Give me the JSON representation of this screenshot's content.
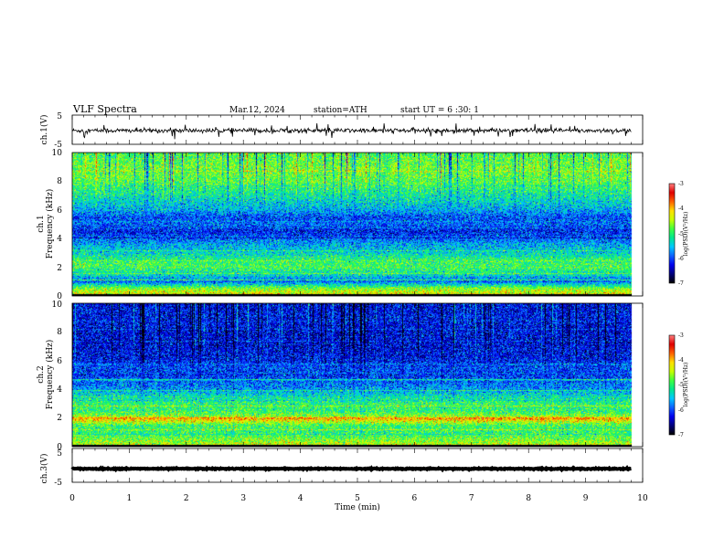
{
  "header": {
    "title": "VLF  Spectra",
    "date": "Mar.12, 2024",
    "station": "station=ATH",
    "start": "start  UT  =   6  :30: 1"
  },
  "colors": {
    "colormap": [
      "#000000",
      "#00007a",
      "#0000ee",
      "#1060ff",
      "#00c8ff",
      "#00e890",
      "#40ff40",
      "#c8ff00",
      "#ffe000",
      "#ff6000",
      "#e00000",
      "#ff8080",
      "#ffffff"
    ],
    "trace": "#000000",
    "frame": "#000000"
  },
  "chart_data": [
    {
      "id": "ch1-trace",
      "type": "line",
      "ylabel": "ch.1(V)",
      "ylim": [
        -5,
        5
      ],
      "yticks": [
        "5",
        "-5"
      ],
      "x_range": [
        0,
        10
      ],
      "trace_mean": -0.3,
      "trace_amplitude": 0.8,
      "data_end_min": 9.8
    },
    {
      "id": "ch1-spectrogram",
      "type": "heatmap",
      "ylabel_line1": "ch.1",
      "ylabel_line2": "Frequency (kHz)",
      "ylim": [
        0,
        10
      ],
      "yticks": [
        "0",
        "2",
        "4",
        "6",
        "8",
        "10"
      ],
      "x_range": [
        0,
        10
      ],
      "data_end_min": 9.8,
      "colorbar": {
        "label": "log(PSD)(V²/Hz)",
        "range": [
          -7,
          -3
        ],
        "ticks": [
          "-3",
          "-4",
          "-5",
          "-6",
          "-7"
        ]
      },
      "band_profile_khz": [
        0,
        0.5,
        1,
        1.5,
        2,
        2.5,
        3,
        3.5,
        4,
        4.5,
        5,
        5.5,
        6,
        7,
        8,
        9,
        10
      ],
      "band_profile_logpsd": [
        -4.2,
        -4.6,
        -5.9,
        -5.3,
        -4.9,
        -5.0,
        -5.4,
        -5.6,
        -5.9,
        -6.2,
        -5.9,
        -6.0,
        -5.6,
        -5.2,
        -4.8,
        -4.7,
        -4.9
      ]
    },
    {
      "id": "ch2-spectrogram",
      "type": "heatmap",
      "ylabel_line1": "ch.2",
      "ylabel_line2": "Frequency (kHz)",
      "ylim": [
        0,
        10
      ],
      "yticks": [
        "0",
        "2",
        "4",
        "6",
        "8",
        "10"
      ],
      "x_range": [
        0,
        10
      ],
      "data_end_min": 9.8,
      "colorbar": {
        "label": "log(PSD)(V²/Hz)",
        "range": [
          -7,
          -3
        ],
        "ticks": [
          "-3",
          "-4",
          "-5",
          "-6",
          "-7"
        ]
      },
      "band_profile_khz": [
        0,
        0.5,
        1,
        1.5,
        2,
        2.1,
        2.5,
        3,
        3.5,
        4,
        4.5,
        5,
        5.5,
        6,
        7,
        8,
        9,
        10
      ],
      "band_profile_logpsd": [
        -4.3,
        -4.7,
        -5.0,
        -4.9,
        -3.8,
        -4.6,
        -5.0,
        -5.0,
        -5.3,
        -5.7,
        -5.9,
        -6.1,
        -6.0,
        -6.2,
        -6.3,
        -6.3,
        -6.2,
        -6.3
      ]
    },
    {
      "id": "ch3-trace",
      "type": "line",
      "ylabel": "ch.3(V)",
      "ylim": [
        -5,
        5
      ],
      "yticks": [
        "5",
        "-5"
      ],
      "x_range": [
        0,
        10
      ],
      "trace_mean": -1.0,
      "trace_amplitude": 0.15,
      "data_end_min": 9.8,
      "xlabel": "Time  (min)",
      "xticks": [
        "0",
        "1",
        "2",
        "3",
        "4",
        "5",
        "6",
        "7",
        "8",
        "9",
        "10"
      ]
    }
  ]
}
